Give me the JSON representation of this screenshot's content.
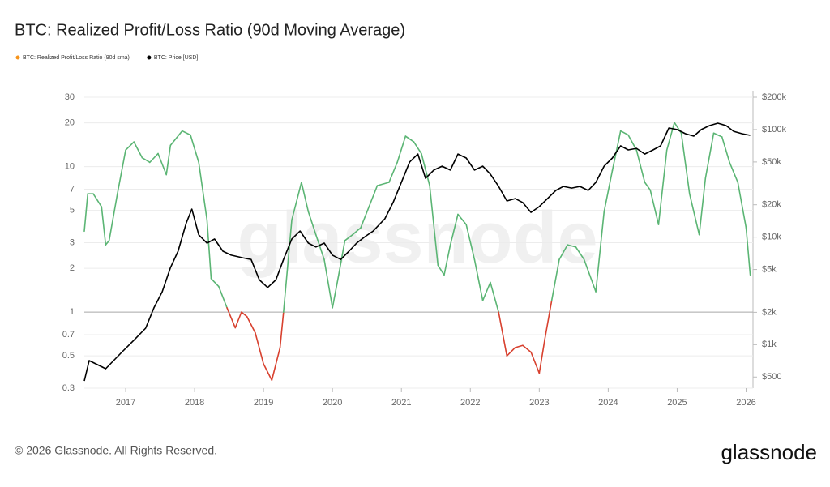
{
  "chart_data": {
    "type": "line",
    "title": "BTC: Realized Profit/Loss Ratio (90d Moving Average)",
    "watermark": "glassnode",
    "footer": "© 2026 Glassnode. All Rights Reserved.",
    "logo": "glassnode",
    "log_scale": true,
    "grid": true,
    "legend": "top-left",
    "threshold": 1,
    "above_color": "#5bb574",
    "below_color": "#d8412f",
    "xlim": [
      2016.4,
      2026.1
    ],
    "xticks": [
      2017,
      2018,
      2019,
      2020,
      2021,
      2022,
      2023,
      2024,
      2025,
      2026
    ],
    "ylim": [
      0.3,
      30
    ],
    "yticks": [
      0.3,
      0.5,
      0.7,
      1,
      2,
      3,
      5,
      7,
      10,
      20,
      30
    ],
    "y2lim": [
      394,
      200000
    ],
    "y2ticks": [
      {
        "value": 500,
        "label": "$500"
      },
      {
        "value": 1000,
        "label": "$1k"
      },
      {
        "value": 2000,
        "label": "$2k"
      },
      {
        "value": 5000,
        "label": "$5k"
      },
      {
        "value": 10000,
        "label": "$10k"
      },
      {
        "value": 20000,
        "label": "$20k"
      },
      {
        "value": 50000,
        "label": "$50k"
      },
      {
        "value": 100000,
        "label": "$100k"
      },
      {
        "value": 200000,
        "label": "$200k"
      }
    ],
    "series": [
      {
        "name": "BTC: Realized Profit/Loss Ratio (90d sma)",
        "color": "#f7931a",
        "threshold_colors": true,
        "x": [
          2016.4,
          2016.45,
          2016.53,
          2016.65,
          2016.71,
          2016.76,
          2016.88,
          2017.0,
          2017.12,
          2017.24,
          2017.35,
          2017.47,
          2017.59,
          2017.65,
          2017.82,
          2017.94,
          2018.06,
          2018.18,
          2018.24,
          2018.35,
          2018.47,
          2018.59,
          2018.68,
          2018.76,
          2018.88,
          2019.0,
          2019.12,
          2019.24,
          2019.29,
          2019.41,
          2019.55,
          2019.65,
          2019.76,
          2019.88,
          2020.0,
          2020.09,
          2020.18,
          2020.29,
          2020.41,
          2020.53,
          2020.65,
          2020.82,
          2020.94,
          2021.06,
          2021.18,
          2021.29,
          2021.41,
          2021.53,
          2021.62,
          2021.71,
          2021.82,
          2021.94,
          2022.06,
          2022.18,
          2022.29,
          2022.41,
          2022.53,
          2022.65,
          2022.76,
          2022.88,
          2023.0,
          2023.08,
          2023.18,
          2023.29,
          2023.41,
          2023.53,
          2023.65,
          2023.82,
          2023.94,
          2024.06,
          2024.18,
          2024.29,
          2024.41,
          2024.53,
          2024.61,
          2024.73,
          2024.85,
          2024.96,
          2025.06,
          2025.18,
          2025.32,
          2025.41,
          2025.53,
          2025.65,
          2025.76,
          2025.88,
          2026.0,
          2026.06
        ],
        "values": [
          3.6,
          6.5,
          6.5,
          5.3,
          2.9,
          3.1,
          6.5,
          13,
          14.8,
          11.5,
          10.7,
          12.3,
          8.8,
          14,
          17.6,
          16.5,
          10.7,
          4.3,
          1.7,
          1.5,
          1.07,
          0.78,
          1.0,
          0.93,
          0.72,
          0.44,
          0.34,
          0.57,
          1.0,
          4.3,
          7.8,
          4.9,
          3.4,
          2.3,
          1.07,
          1.8,
          3.1,
          3.4,
          3.8,
          5.3,
          7.4,
          7.8,
          10.7,
          16.2,
          14.8,
          12.3,
          7.4,
          2.1,
          1.8,
          2.9,
          4.7,
          4.0,
          2.3,
          1.2,
          1.6,
          1.0,
          0.5,
          0.57,
          0.59,
          0.53,
          0.38,
          0.65,
          1.2,
          2.3,
          2.9,
          2.8,
          2.3,
          1.38,
          4.9,
          9.4,
          17.6,
          16.5,
          13,
          7.8,
          6.9,
          4.0,
          13,
          20.1,
          17,
          6.5,
          3.4,
          8.3,
          17,
          16,
          10.7,
          7.8,
          3.8,
          1.8
        ]
      },
      {
        "name": "BTC: Price [USD]",
        "color": "#000000",
        "axis": "y2",
        "x": [
          2016.4,
          2016.47,
          2016.71,
          2016.94,
          2017.12,
          2017.29,
          2017.41,
          2017.53,
          2017.65,
          2017.76,
          2017.88,
          2017.96,
          2018.06,
          2018.18,
          2018.29,
          2018.41,
          2018.53,
          2018.71,
          2018.82,
          2018.94,
          2019.06,
          2019.18,
          2019.29,
          2019.41,
          2019.53,
          2019.65,
          2019.76,
          2019.88,
          2020.0,
          2020.12,
          2020.24,
          2020.35,
          2020.47,
          2020.59,
          2020.76,
          2020.88,
          2021.0,
          2021.12,
          2021.24,
          2021.35,
          2021.47,
          2021.59,
          2021.71,
          2021.82,
          2021.94,
          2022.06,
          2022.18,
          2022.29,
          2022.41,
          2022.53,
          2022.65,
          2022.76,
          2022.88,
          2023.0,
          2023.12,
          2023.24,
          2023.35,
          2023.47,
          2023.59,
          2023.71,
          2023.82,
          2023.94,
          2024.06,
          2024.18,
          2024.29,
          2024.41,
          2024.53,
          2024.65,
          2024.76,
          2024.88,
          2025.0,
          2025.12,
          2025.24,
          2025.35,
          2025.47,
          2025.59,
          2025.71,
          2025.82,
          2025.94,
          2026.06
        ],
        "values": [
          460,
          711,
          598,
          845,
          1100,
          1424,
          2200,
          3100,
          5200,
          7400,
          13600,
          18200,
          10500,
          8800,
          9600,
          7400,
          6800,
          6400,
          6200,
          4000,
          3400,
          4000,
          6200,
          9600,
          11400,
          8800,
          8100,
          8800,
          6800,
          6200,
          7400,
          8800,
          10100,
          11400,
          14800,
          21000,
          32300,
          50000,
          59300,
          35200,
          42000,
          45700,
          42000,
          59300,
          54400,
          42000,
          45700,
          38500,
          29600,
          21700,
          22800,
          21000,
          17000,
          19200,
          22800,
          27200,
          29600,
          28600,
          29600,
          27200,
          32300,
          45700,
          54400,
          70600,
          64700,
          66900,
          59300,
          64700,
          70600,
          103500,
          100000,
          91600,
          86900,
          100000,
          108900,
          114800,
          108900,
          96400,
          91600,
          88500
        ]
      }
    ]
  }
}
